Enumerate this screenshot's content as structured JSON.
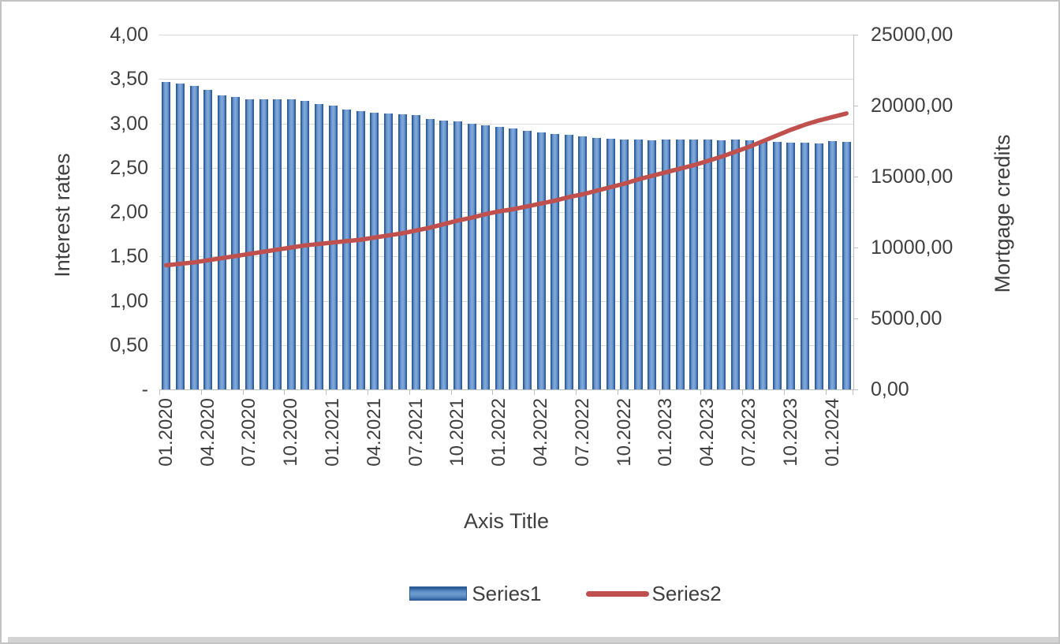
{
  "page": {
    "background": "#ffffff",
    "border_color": "#c3c3c3",
    "bottom_strip_color": "#d3d3d3"
  },
  "chart_data": {
    "type": "combo-bar-line",
    "grid": "horizontal",
    "colors": {
      "bar_fill": "#4f81bd",
      "bar_edge": "#2c5d96",
      "line": "#c0504d",
      "gridline": "#d9d9d9",
      "axis_line": "#bfbfbf",
      "text": "#3f3f3f"
    },
    "categories": [
      "01.2020",
      "02.2020",
      "03.2020",
      "04.2020",
      "05.2020",
      "06.2020",
      "07.2020",
      "08.2020",
      "09.2020",
      "10.2020",
      "11.2020",
      "12.2020",
      "01.2021",
      "02.2021",
      "03.2021",
      "04.2021",
      "05.2021",
      "06.2021",
      "07.2021",
      "08.2021",
      "09.2021",
      "10.2021",
      "11.2021",
      "12.2021",
      "01.2022",
      "02.2022",
      "03.2022",
      "04.2022",
      "05.2022",
      "06.2022",
      "07.2022",
      "08.2022",
      "09.2022",
      "10.2022",
      "11.2022",
      "12.2022",
      "01.2023",
      "02.2023",
      "03.2023",
      "04.2023",
      "05.2023",
      "06.2023",
      "07.2023",
      "08.2023",
      "09.2023",
      "10.2023",
      "11.2023",
      "12.2023",
      "01.2024",
      "02.2024"
    ],
    "x_tick_labels": [
      "01.2020",
      "04.2020",
      "07.2020",
      "10.2020",
      "01.2021",
      "04.2021",
      "07.2021",
      "10.2021",
      "01.2022",
      "04.2022",
      "07.2022",
      "10.2022",
      "01.2023",
      "04.2023",
      "07.2023",
      "10.2023",
      "01.2024"
    ],
    "x_tick_step": 3,
    "series": [
      {
        "name": "Series1",
        "type": "bar",
        "axis": "left",
        "color": "#4f81bd",
        "values": [
          3.47,
          3.45,
          3.42,
          3.38,
          3.32,
          3.3,
          3.27,
          3.27,
          3.27,
          3.27,
          3.25,
          3.22,
          3.2,
          3.16,
          3.14,
          3.12,
          3.11,
          3.1,
          3.09,
          3.05,
          3.03,
          3.02,
          3.0,
          2.98,
          2.96,
          2.94,
          2.92,
          2.9,
          2.88,
          2.87,
          2.85,
          2.84,
          2.83,
          2.82,
          2.82,
          2.81,
          2.82,
          2.82,
          2.82,
          2.82,
          2.81,
          2.82,
          2.81,
          2.8,
          2.79,
          2.78,
          2.78,
          2.77,
          2.8,
          2.79
        ]
      },
      {
        "name": "Series2",
        "type": "line",
        "axis": "right",
        "color": "#c0504d",
        "values": [
          8750,
          8850,
          8950,
          9100,
          9250,
          9400,
          9550,
          9700,
          9850,
          10000,
          10150,
          10250,
          10350,
          10450,
          10550,
          10700,
          10850,
          11000,
          11200,
          11400,
          11650,
          11900,
          12100,
          12350,
          12550,
          12700,
          12900,
          13100,
          13300,
          13550,
          13750,
          14000,
          14250,
          14500,
          14800,
          15050,
          15300,
          15550,
          15800,
          16100,
          16400,
          16750,
          17100,
          17500,
          17900,
          18300,
          18650,
          18950,
          19200,
          19450
        ]
      }
    ],
    "left_axis": {
      "title": "Interest rates",
      "min": 0,
      "max": 4,
      "step": 0.5,
      "tick_labels": [
        "4,00",
        "3,50",
        "3,00",
        "2,50",
        "2,00",
        "1,50",
        "1,00",
        "0,50",
        "-"
      ]
    },
    "right_axis": {
      "title": "Mortgage credits",
      "min": 0,
      "max": 25000,
      "step": 5000,
      "tick_labels": [
        "25000,00",
        "20000,00",
        "15000,00",
        "10000,00",
        "5000,00",
        "0,00"
      ]
    },
    "x_axis": {
      "title": "Axis Title"
    },
    "legend": {
      "position": "bottom",
      "entries": [
        "Series1",
        "Series2"
      ]
    }
  }
}
